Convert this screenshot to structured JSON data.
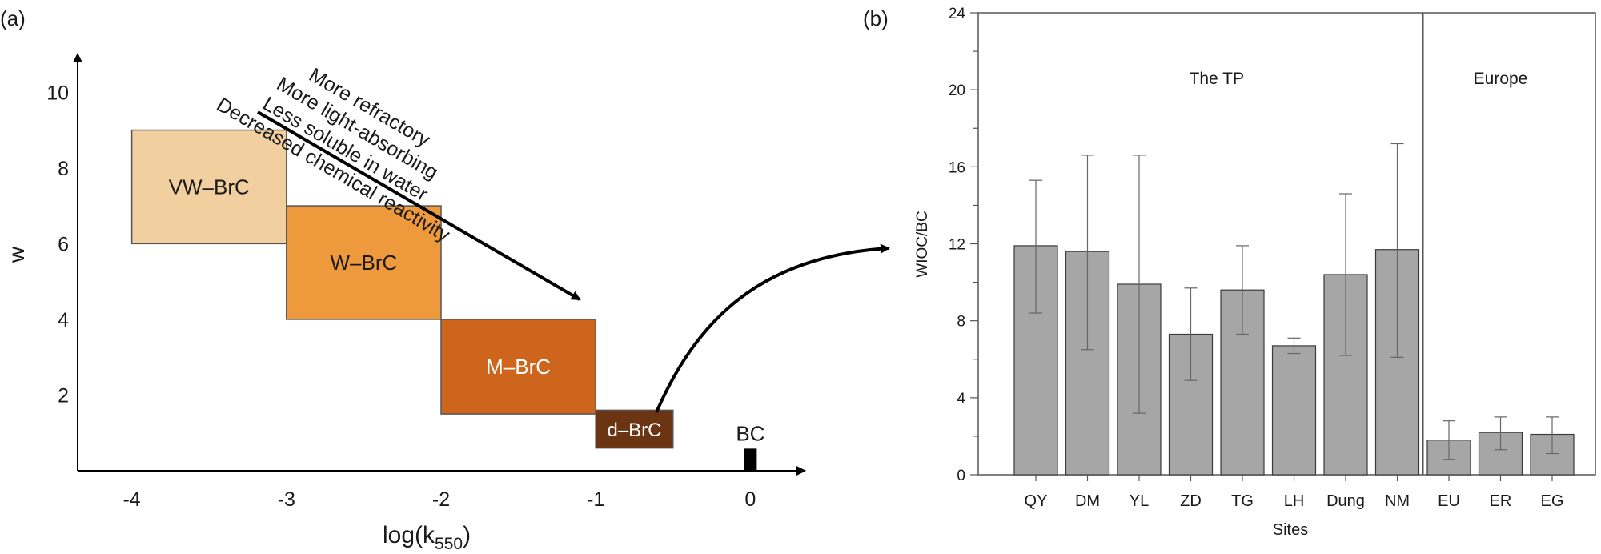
{
  "chart_data": [
    {
      "type": "diagram",
      "panel_label": "(a)",
      "xlabel_main": "log(k",
      "xlabel_sub": "550",
      "xlabel_close": ")",
      "ylabel": "w",
      "x_ticks": [
        "-4",
        "-3",
        "-2",
        "-1",
        "0"
      ],
      "y_ticks": [
        "2",
        "4",
        "6",
        "8",
        "10"
      ],
      "xlim": [
        -4.35,
        0.35
      ],
      "ylim": [
        0,
        11
      ],
      "boxes": [
        {
          "label": "VW–BrC",
          "x0": -4,
          "x1": -3,
          "y0": 6,
          "y1": 9,
          "color": "#f2cf9e",
          "text_color": "#1a1a1a"
        },
        {
          "label": "W–BrC",
          "x0": -3,
          "x1": -2,
          "y0": 4,
          "y1": 7,
          "color": "#ee9a3c",
          "text_color": "#1a1a1a"
        },
        {
          "label": "M–BrC",
          "x0": -2,
          "x1": -1,
          "y0": 1.5,
          "y1": 4,
          "color": "#cd651d",
          "text_color": "#ffffff"
        },
        {
          "label": "d–BrC",
          "x0": -1,
          "x1": -0.5,
          "y0": 0.6,
          "y1": 1.6,
          "color": "#6b3412",
          "text_color": "#ffffff"
        }
      ],
      "bc_marker": {
        "label": "BC",
        "x": 0,
        "y0": 0,
        "y1": 0.5
      },
      "trend_text": [
        "More refractory",
        "More light-absorbing",
        "Less soluble in water",
        "Decreased chemical reactivity"
      ]
    },
    {
      "type": "bar",
      "panel_label": "(b)",
      "title": "",
      "xlabel": "Sites",
      "ylabel": "WIOC/BC",
      "ylim": [
        0,
        24
      ],
      "y_ticks": [
        0,
        4,
        8,
        12,
        16,
        20,
        24
      ],
      "groups": [
        {
          "label": "The TP",
          "count": 8
        },
        {
          "label": "Europe",
          "count": 3
        }
      ],
      "categories": [
        "QY",
        "DM",
        "YL",
        "ZD",
        "TG",
        "LH",
        "Dung",
        "NM",
        "EU",
        "ER",
        "EG"
      ],
      "values": [
        11.9,
        11.6,
        9.9,
        7.3,
        9.6,
        6.7,
        10.4,
        11.7,
        1.8,
        2.2,
        2.1
      ],
      "error_low": [
        8.4,
        6.5,
        3.2,
        4.9,
        7.3,
        6.3,
        6.2,
        6.1,
        0.8,
        1.3,
        1.1
      ],
      "error_high": [
        15.3,
        16.6,
        16.6,
        9.7,
        11.9,
        7.1,
        14.6,
        17.2,
        2.8,
        3.0,
        3.0
      ],
      "bar_color": "#a6a6a6"
    }
  ]
}
